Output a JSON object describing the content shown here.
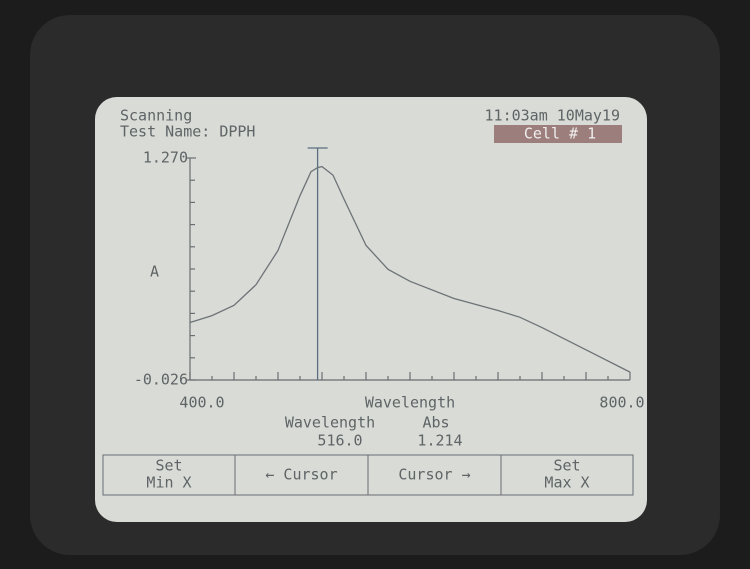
{
  "screen": {
    "status": "Scanning",
    "test_name": "Test Name: DPPH",
    "time": "11:03am 10May19",
    "cell": "Cell # 1",
    "buttons": [
      [
        "Set",
        "Min X"
      ],
      [
        "← Cursor"
      ],
      [
        "Cursor →"
      ],
      [
        "Set",
        "Max X"
      ]
    ]
  },
  "chart_data": {
    "type": "line",
    "x_label": "Wavelength",
    "y_label": "A",
    "x": [
      400,
      420,
      440,
      460,
      480,
      500,
      510,
      516,
      520,
      530,
      540,
      560,
      580,
      600,
      640,
      680,
      700,
      720,
      760,
      800
    ],
    "series": [
      {
        "name": "Scan",
        "color": "#6d7377",
        "values": [
          0.31,
          0.35,
          0.41,
          0.53,
          0.73,
          1.05,
          1.19,
          1.214,
          1.22,
          1.17,
          1.03,
          0.76,
          0.62,
          0.55,
          0.45,
          0.38,
          0.34,
          0.28,
          0.15,
          0.02
        ]
      }
    ],
    "xlim": [
      400,
      800
    ],
    "xticks": [
      {
        "value": 400,
        "label": "400.0"
      },
      {
        "value": 800,
        "label": "800.0"
      }
    ],
    "ylim": [
      -0.026,
      1.27
    ],
    "yticks": [
      {
        "value": 1.27,
        "label": "1.270"
      },
      -0.026
    ],
    "cursor": {
      "x_title": "Wavelength",
      "y_title": "Abs",
      "x": {
        "value": 516,
        "label": "516.0"
      },
      "y": 1.214
    }
  }
}
